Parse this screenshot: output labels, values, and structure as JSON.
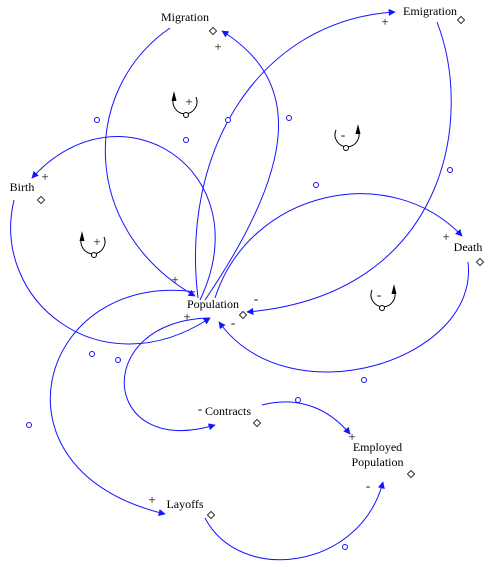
{
  "nodes": [
    {
      "label": "Migration"
    },
    {
      "label": "Emigration"
    },
    {
      "label": "Birth"
    },
    {
      "label": "Death"
    },
    {
      "label": "Population"
    },
    {
      "label": "Contracts"
    },
    {
      "label": "Employed Population"
    },
    {
      "label": "Layoffs"
    }
  ],
  "links": [
    {
      "polarity": "+"
    },
    {
      "polarity": "+"
    },
    {
      "polarity": "+"
    },
    {
      "polarity": "-"
    },
    {
      "polarity": "+"
    },
    {
      "polarity": "+"
    },
    {
      "polarity": "+"
    },
    {
      "polarity": "-"
    },
    {
      "polarity": "-"
    },
    {
      "polarity": "+"
    },
    {
      "polarity": "+"
    },
    {
      "polarity": "-"
    }
  ],
  "loops": [
    {
      "polarity": "+"
    },
    {
      "polarity": "-"
    },
    {
      "polarity": "+"
    },
    {
      "polarity": "-"
    }
  ]
}
